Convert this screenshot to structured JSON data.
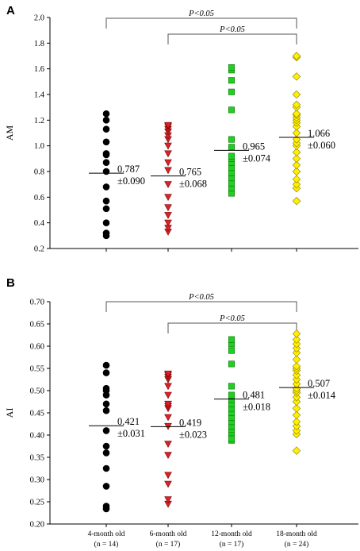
{
  "chart_data": [
    {
      "type": "scatter",
      "panel_label": "A",
      "ylabel": "AM",
      "ylim": [
        0.2,
        2.0
      ],
      "yticks": [
        "0.2",
        "0.4",
        "0.6",
        "0.8",
        "1.0",
        "1.2",
        "1.4",
        "1.6",
        "1.8",
        "2.0"
      ],
      "series": [
        {
          "values": [
            0.3,
            0.32,
            0.4,
            0.51,
            0.57,
            0.68,
            0.8,
            0.87,
            0.93,
            0.94,
            1.03,
            1.13,
            1.2,
            1.25
          ],
          "mean": 0.787,
          "annotation": [
            "0.787",
            "±0.090"
          ]
        },
        {
          "values": [
            0.33,
            0.36,
            0.4,
            0.46,
            0.52,
            0.6,
            0.7,
            0.81,
            0.87,
            0.94,
            1.0,
            1.05,
            1.08,
            1.11,
            1.13,
            1.15,
            1.16
          ],
          "mean": 0.765,
          "annotation": [
            "0.765",
            "±0.068"
          ]
        },
        {
          "values": [
            0.63,
            0.67,
            0.71,
            0.75,
            0.79,
            0.83,
            0.87,
            0.9,
            0.92,
            0.99,
            1.05,
            1.28,
            1.42,
            1.51,
            1.59,
            1.61,
            1.61
          ],
          "mean": 0.965,
          "annotation": [
            "0.965",
            "±0.074"
          ]
        },
        {
          "values": [
            0.57,
            0.67,
            0.7,
            0.74,
            0.8,
            0.85,
            0.9,
            0.95,
            1.0,
            1.02,
            1.05,
            1.1,
            1.15,
            1.18,
            1.2,
            1.22,
            1.24,
            1.25,
            1.3,
            1.32,
            1.4,
            1.54,
            1.69,
            1.7
          ],
          "mean": 1.066,
          "annotation": [
            "1.066",
            "±0.060"
          ]
        }
      ],
      "brackets": [
        {
          "from": 0,
          "to": 3,
          "label": "P<0.05"
        },
        {
          "from": 1,
          "to": 3,
          "label": "P<0.05"
        }
      ]
    },
    {
      "type": "scatter",
      "panel_label": "B",
      "ylabel": "AI",
      "ylim": [
        0.2,
        0.7
      ],
      "yticks": [
        "0.20",
        "0.25",
        "0.30",
        "0.35",
        "0.40",
        "0.45",
        "0.50",
        "0.55",
        "0.60",
        "0.65",
        "0.70"
      ],
      "series": [
        {
          "values": [
            0.234,
            0.24,
            0.285,
            0.325,
            0.36,
            0.375,
            0.41,
            0.455,
            0.47,
            0.49,
            0.5,
            0.505,
            0.54,
            0.557
          ],
          "mean": 0.421,
          "annotation": [
            "0.421",
            "±0.031"
          ]
        },
        {
          "values": [
            0.245,
            0.255,
            0.29,
            0.31,
            0.355,
            0.38,
            0.42,
            0.44,
            0.46,
            0.465,
            0.47,
            0.49,
            0.51,
            0.525,
            0.53,
            0.535,
            0.538
          ],
          "mean": 0.419,
          "annotation": [
            "0.419",
            "±0.023"
          ]
        },
        {
          "values": [
            0.388,
            0.392,
            0.405,
            0.412,
            0.42,
            0.43,
            0.44,
            0.45,
            0.46,
            0.47,
            0.48,
            0.49,
            0.51,
            0.56,
            0.59,
            0.605,
            0.615
          ],
          "mean": 0.481,
          "annotation": [
            "0.481",
            "±0.018"
          ]
        },
        {
          "values": [
            0.365,
            0.402,
            0.41,
            0.42,
            0.43,
            0.445,
            0.46,
            0.475,
            0.485,
            0.495,
            0.5,
            0.505,
            0.515,
            0.525,
            0.535,
            0.545,
            0.55,
            0.555,
            0.57,
            0.585,
            0.595,
            0.605,
            0.615,
            0.628
          ],
          "mean": 0.507,
          "annotation": [
            "0.507",
            "±0.014"
          ]
        }
      ],
      "brackets": [
        {
          "from": 0,
          "to": 3,
          "label": "P<0.05"
        },
        {
          "from": 1,
          "to": 3,
          "label": "P<0.05"
        }
      ]
    }
  ],
  "groups": [
    {
      "label": "4-month old",
      "n": "(n = 14)",
      "marker": "circle",
      "color": "#000000"
    },
    {
      "label": "6-month old",
      "n": "(n = 17)",
      "marker": "triangle-down",
      "color": "#d8232a"
    },
    {
      "label": "12-month old",
      "n": "(n = 17)",
      "marker": "square",
      "color": "#1fd11f"
    },
    {
      "label": "18-month old",
      "n": "(n = 24)",
      "marker": "diamond",
      "color": "#ffef00"
    }
  ]
}
